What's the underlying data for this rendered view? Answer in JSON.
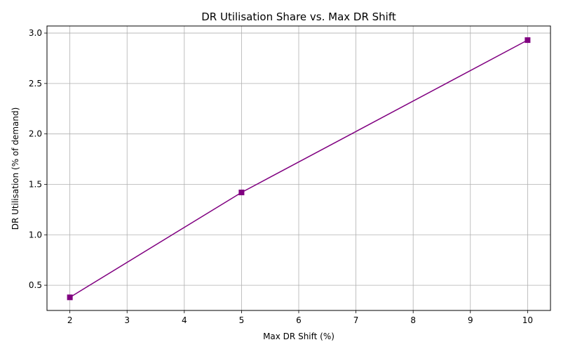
{
  "chart_data": {
    "type": "line",
    "title": "DR Utilisation Share vs. Max DR Shift",
    "xlabel": "Max DR Shift (%)",
    "ylabel": "DR Utilisation (% of demand)",
    "xlim": [
      1.6,
      10.4
    ],
    "ylim": [
      0.25,
      3.07
    ],
    "xticks": [
      2,
      3,
      4,
      5,
      6,
      7,
      8,
      9,
      10
    ],
    "xtick_labels": [
      "2",
      "3",
      "4",
      "5",
      "6",
      "7",
      "8",
      "9",
      "10"
    ],
    "yticks": [
      0.5,
      1.0,
      1.5,
      2.0,
      2.5,
      3.0
    ],
    "ytick_labels": [
      "0.5",
      "1.0",
      "1.5",
      "2.0",
      "2.5",
      "3.0"
    ],
    "grid": true,
    "series": [
      {
        "x": [
          2,
          5,
          10
        ],
        "values": [
          0.38,
          1.42,
          2.93
        ],
        "color": "#800080",
        "marker": "square"
      }
    ]
  }
}
